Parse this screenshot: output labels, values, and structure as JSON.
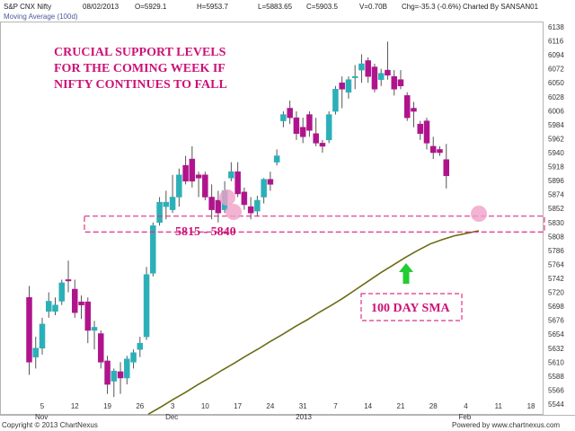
{
  "header": {
    "symbol": "S&P CNX Nifty",
    "date": "08/02/2013",
    "open": "O=5929.1",
    "high": "H=5953.7",
    "low": "L=5883.65",
    "close": "C=5903.5",
    "volume": "V=0.70B",
    "change": "Chg=-35.3 (-0.6%)",
    "charted_by": "Charted By SANSAN01",
    "indicator": "Moving Average (100d)"
  },
  "annotations": {
    "headline": [
      "CRUCIAL SUPPORT LEVELS",
      "FOR THE COMING WEEK IF",
      "NIFTY CONTINUES TO FALL"
    ],
    "support_label": "5815 - 5840",
    "sma_label": "100 DAY SMA"
  },
  "footer": {
    "copyright": "Copyright © 2013 ChartNexus",
    "powered": "Powered by www.chartnexus.com"
  },
  "colors": {
    "up": "#2bb0b8",
    "down": "#b0148c",
    "sma": "#6b6b14",
    "annotation": "#cc1177",
    "support_zone": "#dd3388",
    "marker": "#f0a0c8",
    "arrow": "#22cc33"
  },
  "chart_data": {
    "type": "candlestick",
    "y_ticks": [
      5544,
      5566,
      5588,
      5610,
      5632,
      5654,
      5676,
      5698,
      5720,
      5742,
      5764,
      5786,
      5808,
      5830,
      5852,
      5874,
      5896,
      5918,
      5940,
      5962,
      5984,
      6006,
      6028,
      6050,
      6072,
      6094,
      6116,
      6138
    ],
    "ylim": [
      5522,
      6138
    ],
    "x_ticks": [
      "5",
      "12",
      "19",
      "26",
      "3",
      "10",
      "17",
      "24",
      "31",
      "7",
      "14",
      "21",
      "28",
      "4",
      "11",
      "18"
    ],
    "x_tick_dates": [
      "2012-11-05",
      "2012-11-12",
      "2012-11-19",
      "2012-11-26",
      "2012-12-03",
      "2012-12-10",
      "2012-12-17",
      "2012-12-24",
      "2012-12-31",
      "2013-01-07",
      "2013-01-14",
      "2013-01-21",
      "2013-01-28",
      "2013-02-04",
      "2013-02-11",
      "2013-02-18"
    ],
    "month_labels": [
      {
        "label": "Nov",
        "at": "5"
      },
      {
        "label": "Dec",
        "at": "3"
      },
      {
        "label": "2013",
        "at": "31"
      },
      {
        "label": "Feb",
        "at": "4"
      }
    ],
    "ohlc": [
      [
        5712,
        5730,
        5590,
        5610
      ],
      [
        5618,
        5650,
        5600,
        5632
      ],
      [
        5632,
        5680,
        5622,
        5670
      ],
      [
        5690,
        5720,
        5680,
        5706
      ],
      [
        5690,
        5712,
        5684,
        5700
      ],
      [
        5706,
        5740,
        5700,
        5735
      ],
      [
        5740,
        5770,
        5720,
        5738
      ],
      [
        5725,
        5740,
        5680,
        5688
      ],
      [
        5705,
        5715,
        5678,
        5700
      ],
      [
        5705,
        5712,
        5640,
        5660
      ],
      [
        5660,
        5675,
        5630,
        5665
      ],
      [
        5655,
        5660,
        5600,
        5610
      ],
      [
        5612,
        5620,
        5560,
        5575
      ],
      [
        5580,
        5600,
        5555,
        5596
      ],
      [
        5595,
        5610,
        5560,
        5585
      ],
      [
        5585,
        5620,
        5575,
        5615
      ],
      [
        5610,
        5630,
        5600,
        5625
      ],
      [
        5630,
        5650,
        5618,
        5640
      ],
      [
        5650,
        5760,
        5645,
        5748
      ],
      [
        5750,
        5830,
        5745,
        5825
      ],
      [
        5830,
        5870,
        5825,
        5862
      ],
      [
        5855,
        5880,
        5835,
        5862
      ],
      [
        5850,
        5905,
        5845,
        5870
      ],
      [
        5870,
        5915,
        5855,
        5905
      ],
      [
        5920,
        5935,
        5890,
        5895
      ],
      [
        5930,
        5950,
        5885,
        5895
      ],
      [
        5905,
        5910,
        5870,
        5900
      ],
      [
        5905,
        5910,
        5865,
        5870
      ],
      [
        5870,
        5890,
        5835,
        5850
      ],
      [
        5865,
        5880,
        5830,
        5845
      ],
      [
        5850,
        5895,
        5845,
        5880
      ],
      [
        5900,
        5925,
        5895,
        5910
      ],
      [
        5910,
        5925,
        5870,
        5875
      ],
      [
        5878,
        5885,
        5850,
        5858
      ],
      [
        5855,
        5870,
        5835,
        5845
      ],
      [
        5848,
        5872,
        5840,
        5865
      ],
      [
        5870,
        5900,
        5860,
        5898
      ],
      [
        5898,
        5910,
        5880,
        5890
      ],
      [
        5925,
        5945,
        5920,
        5935
      ],
      [
        5990,
        6005,
        5980,
        6000
      ],
      [
        6010,
        6022,
        5985,
        5995
      ],
      [
        5995,
        6005,
        5960,
        5970
      ],
      [
        5980,
        5995,
        5955,
        5965
      ],
      [
        6000,
        6005,
        5965,
        5975
      ],
      [
        5970,
        5995,
        5950,
        5955
      ],
      [
        5955,
        5960,
        5940,
        5950
      ],
      [
        5960,
        6005,
        5955,
        6000
      ],
      [
        6005,
        6045,
        6000,
        6040
      ],
      [
        6050,
        6060,
        6010,
        6040
      ],
      [
        6035,
        6060,
        6025,
        6055
      ],
      [
        6060,
        6078,
        6040,
        6060
      ],
      [
        6070,
        6095,
        6050,
        6080
      ],
      [
        6085,
        6090,
        6050,
        6060
      ],
      [
        6075,
        6080,
        6035,
        6040
      ],
      [
        6055,
        6072,
        6045,
        6065
      ],
      [
        6070,
        6115,
        6055,
        6062
      ],
      [
        6060,
        6070,
        6030,
        6040
      ],
      [
        6055,
        6070,
        6040,
        6045
      ],
      [
        6030,
        6035,
        5990,
        5995
      ],
      [
        6010,
        6020,
        5980,
        6005
      ],
      [
        5985,
        5990,
        5960,
        5970
      ],
      [
        5990,
        5995,
        5945,
        5955
      ],
      [
        5950,
        5965,
        5930,
        5940
      ],
      [
        5945,
        5950,
        5935,
        5940
      ],
      [
        5929.1,
        5953.7,
        5883.65,
        5903.5
      ]
    ],
    "sma_100": [
      5528,
      5539,
      5551,
      5562,
      5574,
      5585,
      5597,
      5608,
      5620,
      5631,
      5643,
      5654,
      5666,
      5677,
      5689,
      5700,
      5712,
      5725,
      5738,
      5751,
      5763,
      5775,
      5786,
      5796,
      5803,
      5809,
      5813,
      5817
    ],
    "support_zone": [
      5815,
      5840
    ],
    "grid": false
  }
}
